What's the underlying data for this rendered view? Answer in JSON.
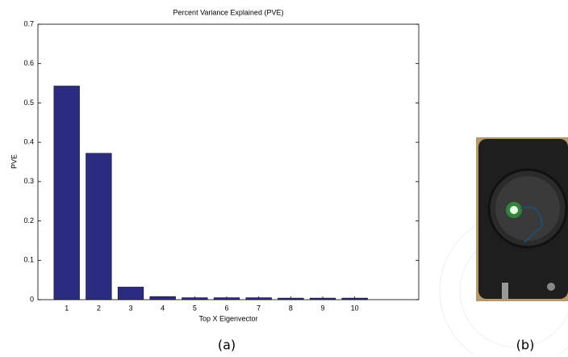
{
  "chart_data": {
    "type": "bar",
    "title": "Percent Variance Explained (PVE)",
    "x_label": "Top X Eigenvector",
    "y_label": "PVE",
    "x": [
      1,
      2,
      3,
      4,
      5,
      6,
      7,
      8,
      9,
      10
    ],
    "values": [
      0.543,
      0.372,
      0.032,
      0.008,
      0.005,
      0.005,
      0.005,
      0.004,
      0.004,
      0.004
    ],
    "color": "#2b2b7f",
    "xlim": [
      0.1,
      12
    ],
    "xticks": [
      1,
      2,
      3,
      4,
      5,
      6,
      7,
      8,
      9,
      10
    ],
    "ylim": [
      0,
      0.7
    ],
    "yticks": [
      0,
      0.1,
      0.2,
      0.3,
      0.4,
      0.5,
      0.6,
      0.7
    ]
  },
  "captions": [
    "(a)",
    "(b)"
  ]
}
